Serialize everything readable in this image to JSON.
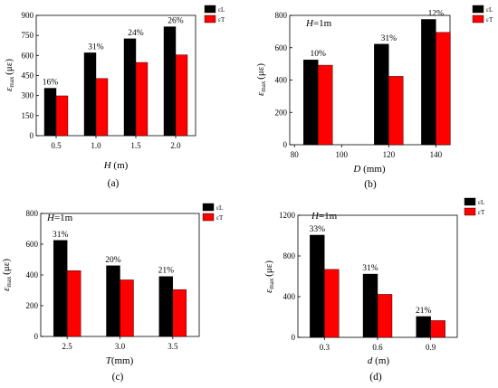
{
  "chart_data": [
    {
      "type": "bar",
      "panel_label": "(a)",
      "note": "",
      "xlabel_var": "H",
      "xlabel_unit": " (m)",
      "ylabel_var": "ε",
      "ylabel_sub": "max",
      "ylabel_unit": "(με)",
      "categories": [
        "0.5",
        "1.0",
        "1.5",
        "2.0"
      ],
      "ylim": [
        0,
        900
      ],
      "yticks": [
        0,
        150,
        300,
        450,
        600,
        750,
        900
      ],
      "series": [
        {
          "name": "εL",
          "color": "#000000",
          "values": [
            355,
            620,
            725,
            815
          ]
        },
        {
          "name": "εT",
          "color": "#ff0000",
          "values": [
            298,
            428,
            548,
            605
          ]
        }
      ],
      "annotations": [
        "16%",
        "31%",
        "24%",
        "26%"
      ],
      "legend_position": "top-right"
    },
    {
      "type": "bar",
      "panel_label": "(b)",
      "note": "H=1m",
      "xlabel_var": "D",
      "xlabel_unit": " (mm)",
      "ylabel_var": "ε",
      "ylabel_sub": "max",
      "ylabel_unit": "(με)",
      "categories": [
        "90",
        "120",
        "140"
      ],
      "x": [
        90,
        120,
        140
      ],
      "xlim": [
        78,
        146
      ],
      "xticks": [
        80,
        100,
        120,
        140
      ],
      "ylim": [
        0,
        800
      ],
      "yticks": [
        0,
        200,
        400,
        600,
        800
      ],
      "series": [
        {
          "name": "εL",
          "color": "#000000",
          "values": [
            525,
            622,
            775
          ]
        },
        {
          "name": "εT",
          "color": "#ff0000",
          "values": [
            492,
            423,
            695
          ]
        }
      ],
      "annotations": [
        "10%",
        "31%",
        "12%"
      ],
      "legend_position": "top-right"
    },
    {
      "type": "bar",
      "panel_label": "(c)",
      "note": "H=1m",
      "xlabel_var": "T",
      "xlabel_unit": "(mm)",
      "ylabel_var": "ε",
      "ylabel_sub": "max",
      "ylabel_unit": "(με)",
      "categories": [
        "2.5",
        "3.0",
        "3.5"
      ],
      "ylim": [
        0,
        800
      ],
      "yticks": [
        0,
        200,
        400,
        600,
        800
      ],
      "series": [
        {
          "name": "εL",
          "color": "#000000",
          "values": [
            625,
            460,
            390
          ]
        },
        {
          "name": "εT",
          "color": "#ff0000",
          "values": [
            428,
            368,
            305
          ]
        }
      ],
      "annotations": [
        "31%",
        "20%",
        "21%"
      ],
      "legend_position": "top-right"
    },
    {
      "type": "bar",
      "panel_label": "(d)",
      "note": "H=1m",
      "xlabel_var": "d",
      "xlabel_unit": " (m)",
      "ylabel_var": "ε",
      "ylabel_sub": "max",
      "ylabel_unit": "(με)",
      "categories": [
        "0.3",
        "0.6",
        "0.9"
      ],
      "ylim": [
        0,
        1200
      ],
      "yticks": [
        0,
        400,
        800,
        1200
      ],
      "series": [
        {
          "name": "εL",
          "color": "#000000",
          "values": [
            1005,
            622,
            205
          ]
        },
        {
          "name": "εT",
          "color": "#ff0000",
          "values": [
            668,
            423,
            165
          ]
        }
      ],
      "annotations": [
        "33%",
        "31%",
        "21%"
      ],
      "legend_position": "top-right"
    }
  ]
}
